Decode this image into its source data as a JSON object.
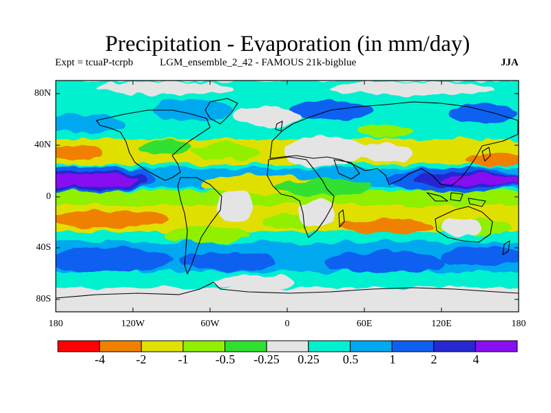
{
  "title": "Precipitation - Evaporation (in mm/day)",
  "expt_label": "Expt = tcuaP-tcrpb",
  "run_label": "LGM_ensemble_2_42 - FAMOUS 21k-bigblue",
  "season": "JJA",
  "lat_labels": [
    "80N",
    "40N",
    "0",
    "40S",
    "80S"
  ],
  "lon_labels": [
    "180",
    "120W",
    "60W",
    "0",
    "60E",
    "120E",
    "180"
  ],
  "colorbar": {
    "colors": [
      "#ff0000",
      "#f08000",
      "#e0e000",
      "#90f000",
      "#30e030",
      "#e4e4e4",
      "#00f0d0",
      "#00a8f0",
      "#1060f0",
      "#2828d0",
      "#8810f0"
    ],
    "labels": [
      "-4",
      "-2",
      "-1",
      "-0.5",
      "-0.25",
      "0.25",
      "0.5",
      "1",
      "2",
      "4"
    ]
  }
}
